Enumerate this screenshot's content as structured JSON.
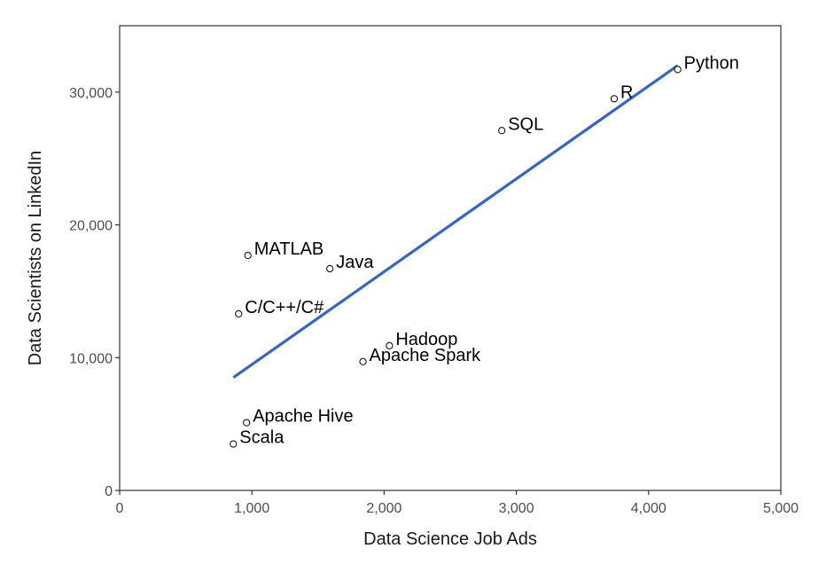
{
  "chart_data": {
    "type": "scatter",
    "title": "",
    "xlabel": "Data Science Job Ads",
    "ylabel": "Data Scientists on LinkedIn",
    "xlim": [
      0,
      5000
    ],
    "ylim": [
      0,
      35000
    ],
    "x_ticks": [
      0,
      1000,
      2000,
      3000,
      4000,
      5000
    ],
    "x_tick_labels": [
      "0",
      "1,000",
      "2,000",
      "3,000",
      "4,000",
      "5,000"
    ],
    "y_ticks": [
      0,
      10000,
      20000,
      30000
    ],
    "y_tick_labels": [
      "0",
      "10,000",
      "20,000",
      "30,000"
    ],
    "grid": false,
    "points": [
      {
        "label": "Python",
        "x": 4220,
        "y": 31700
      },
      {
        "label": "R",
        "x": 3740,
        "y": 29500
      },
      {
        "label": "SQL",
        "x": 2890,
        "y": 27100
      },
      {
        "label": "MATLAB",
        "x": 970,
        "y": 17700
      },
      {
        "label": "Java",
        "x": 1590,
        "y": 16700
      },
      {
        "label": "C/C++/C#",
        "x": 900,
        "y": 13300
      },
      {
        "label": "Hadoop",
        "x": 2040,
        "y": 10900
      },
      {
        "label": "Apache Spark",
        "x": 1840,
        "y": 9700
      },
      {
        "label": "Apache Hive",
        "x": 960,
        "y": 5100
      },
      {
        "label": "Scala",
        "x": 860,
        "y": 3500
      }
    ],
    "trendline": {
      "x": [
        860,
        4220
      ],
      "y": [
        8500,
        32000
      ],
      "color": "#3366cc"
    },
    "point_style": "hollow-circle"
  }
}
